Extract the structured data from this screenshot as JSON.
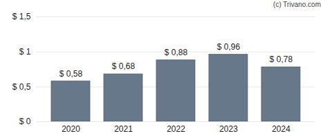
{
  "chart_data": {
    "type": "bar",
    "annotations": [
      "(c) Trivano.com"
    ],
    "categories": [
      "2020",
      "2021",
      "2022",
      "2023",
      "2024"
    ],
    "values": [
      0.58,
      0.68,
      0.88,
      0.96,
      0.78
    ],
    "value_labels": [
      "$ 0,58",
      "$ 0,68",
      "$ 0,88",
      "$ 0,96",
      "$ 0,78"
    ],
    "data_labels": true,
    "color": "#66788a",
    "ylim": [
      0,
      1.5
    ],
    "yticks": [
      {
        "value": 0,
        "label": "$ 0"
      },
      {
        "value": 0.5,
        "label": "$ 0,5"
      },
      {
        "value": 1,
        "label": "$ 1"
      },
      {
        "value": 1.5,
        "label": "$ 1,5"
      }
    ],
    "grid": true
  }
}
